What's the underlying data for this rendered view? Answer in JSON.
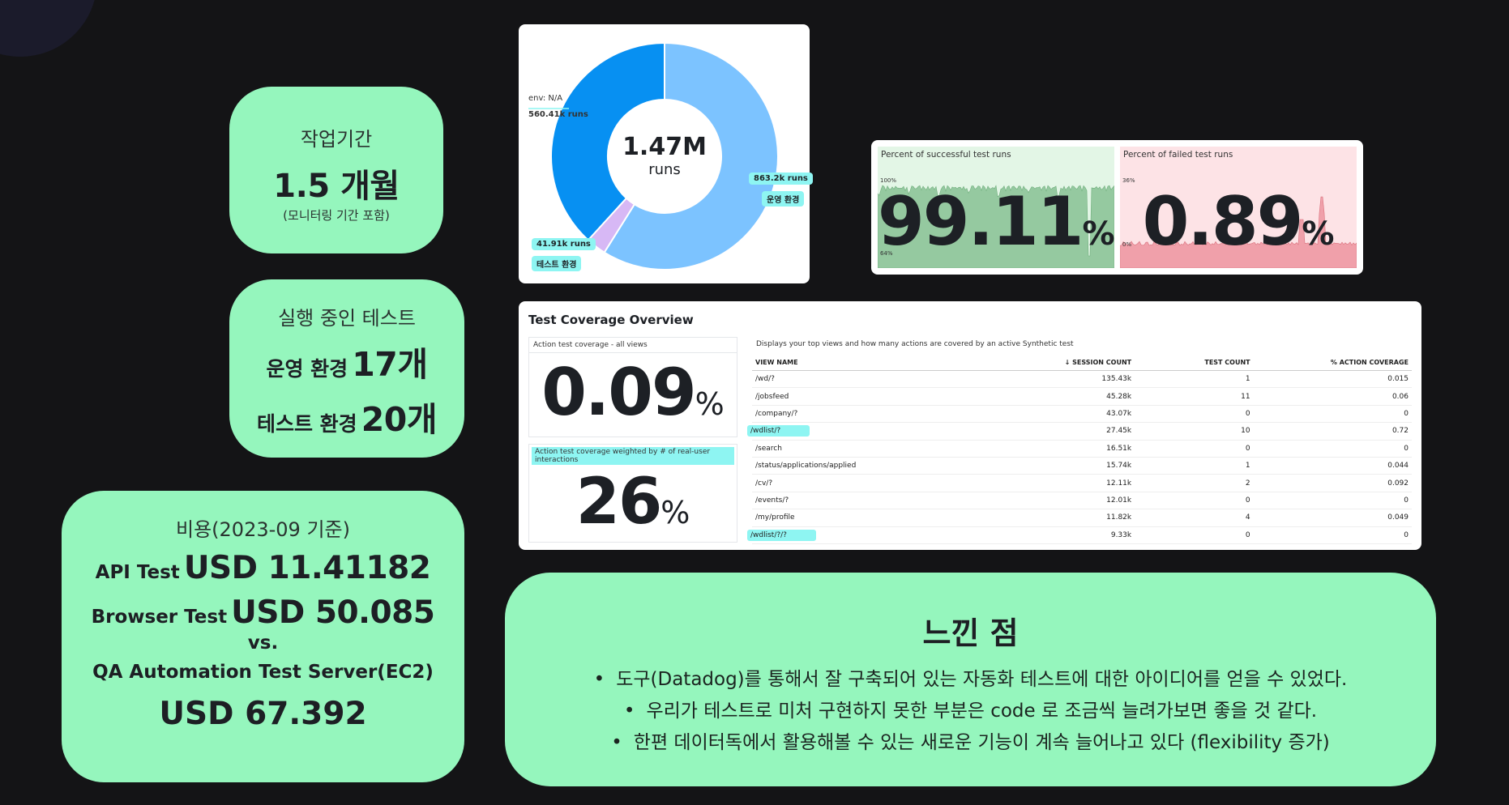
{
  "period": {
    "label": "작업기간",
    "value": "1.5 개월",
    "note": "(모니터링 기간 포함)"
  },
  "tests": {
    "label": "실행 중인 테스트",
    "rows": [
      {
        "key": "운영 환경",
        "value": "17개"
      },
      {
        "key": "테스트 환경",
        "value": "20개"
      }
    ]
  },
  "cost": {
    "label": "비용(2023-09 기준)",
    "rows": [
      {
        "key": "API Test",
        "value": "USD 11.41182"
      },
      {
        "key": "Browser Test",
        "value": "USD 50.085"
      }
    ],
    "vs": "vs.",
    "server": "QA Automation Test Server(EC2)",
    "server_value": "USD 67.392"
  },
  "feel": {
    "title": "느낀 점",
    "bullets": [
      "도구(Datadog)를 통해서 잘 구축되어 있는 자동화 테스트에 대한 아이디어를 얻을 수 있었다.",
      "우리가 테스트로 미처 구현하지 못한 부분은 code 로 조금씩 늘려가보면 좋을 것 같다.",
      "한편 데이터독에서 활용해볼  수 있는 새로운 기능이 계속 늘어나고 있다 (flexibility 증가)"
    ]
  },
  "chart_data": {
    "type": "pie",
    "center_value": "1.47M",
    "center_unit": "runs",
    "slices": [
      {
        "label": "운영 환경",
        "value_label": "863.2k runs",
        "value": 863.2,
        "color": "#7cc3ff"
      },
      {
        "label": "테스트 환경",
        "value_label": "41.91k runs",
        "value": 41.91,
        "color": "#d7b8f5"
      },
      {
        "label": "env: N/A",
        "value_label": "560.41k runs",
        "value": 560.41,
        "color": "#0790f2"
      }
    ]
  },
  "success": {
    "title": "Percent of successful test runs",
    "value": "99.11",
    "unit": "%",
    "tick_top": "100%",
    "tick_bottom": "64%"
  },
  "failed": {
    "title": "Percent of failed test runs",
    "value": "0.89",
    "unit": "%",
    "tick_top": "36%",
    "tick_bottom": "0%"
  },
  "coverage": {
    "title": "Test Coverage Overview",
    "all_views_label": "Action test coverage - all views",
    "all_views_value": "0.09",
    "weighted_label": "Action test coverage weighted by # of real-user interactions",
    "weighted_value": "26",
    "unit": "%",
    "description": "Displays your top views and how many actions are covered by an active Synthetic test",
    "headers": [
      "VIEW NAME",
      "↓  SESSION COUNT",
      "TEST COUNT",
      "% ACTION COVERAGE"
    ],
    "rows": [
      [
        "/wd/?",
        "135.43k",
        "1",
        "0.015"
      ],
      [
        "/jobsfeed",
        "45.28k",
        "11",
        "0.06"
      ],
      [
        "/company/?",
        "43.07k",
        "0",
        "0"
      ],
      [
        "/wdlist/?",
        "27.45k",
        "10",
        "0.72"
      ],
      [
        "/search",
        "16.51k",
        "0",
        "0"
      ],
      [
        "/status/applications/applied",
        "15.74k",
        "1",
        "0.044"
      ],
      [
        "/cv/?",
        "12.11k",
        "2",
        "0.092"
      ],
      [
        "/events/?",
        "12.01k",
        "0",
        "0"
      ],
      [
        "/my/profile",
        "11.82k",
        "4",
        "0.049"
      ],
      [
        "/wdlist/?/?",
        "9.33k",
        "0",
        "0"
      ]
    ],
    "highlighted_rows": [
      3,
      9
    ]
  }
}
